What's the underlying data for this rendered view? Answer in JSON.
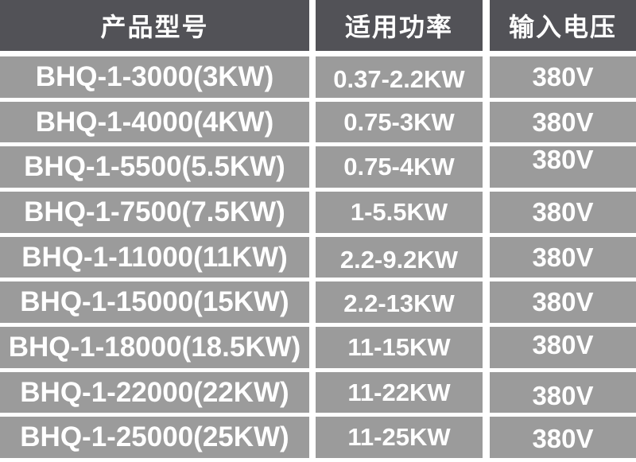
{
  "colors": {
    "header_bg": "#525257",
    "row_bg": "#9b9b9b",
    "gap": "#ffffff",
    "text": "#ffffff"
  },
  "chart_data": {
    "type": "table",
    "columns": [
      "产品型号",
      "适用功率",
      "输入电压"
    ],
    "rows": [
      [
        "BHQ-1-3000(3KW)",
        "0.37-2.2KW",
        "380V"
      ],
      [
        "BHQ-1-4000(4KW)",
        "0.75-3KW",
        "380V"
      ],
      [
        "BHQ-1-5500(5.5KW)",
        "0.75-4KW",
        "380V"
      ],
      [
        "BHQ-1-7500(7.5KW)",
        "1-5.5KW",
        "380V"
      ],
      [
        "BHQ-1-11000(11KW)",
        "2.2-9.2KW",
        "380V"
      ],
      [
        "BHQ-1-15000(15KW)",
        "2.2-13KW",
        "380V"
      ],
      [
        "BHQ-1-18000(18.5KW)",
        "11-15KW",
        "380V"
      ],
      [
        "BHQ-1-22000(22KW)",
        "11-22KW",
        "380V"
      ],
      [
        "BHQ-1-25000(25KW)",
        "11-25KW",
        "380V"
      ]
    ]
  }
}
